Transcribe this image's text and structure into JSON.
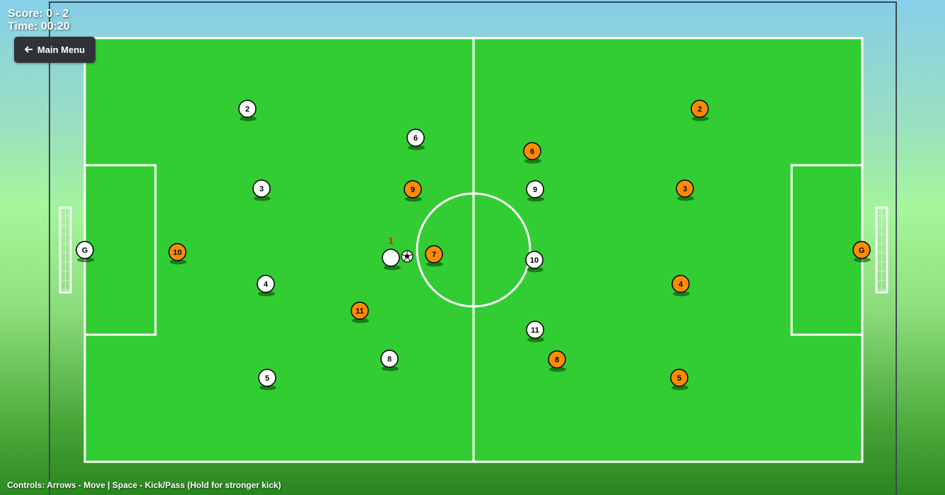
{
  "hud": {
    "score_label": "Score:",
    "score": "0 - 2",
    "time_label": "Time:",
    "time": "00:20"
  },
  "menu": {
    "arrow_icon": "left-arrow-icon",
    "label": "Main Menu"
  },
  "controls_hint": "Controls: Arrows - Move | Space - Kick/Pass (Hold for stronger kick)",
  "colors": {
    "pitch": "#32cd32",
    "lines": "#ffffff",
    "home_team": "#ffffff",
    "away_team": "#ff8c00",
    "player_outline": "#000000",
    "active_indicator": "#ff0000"
  },
  "active_player": {
    "indicator": "1",
    "team": "home"
  },
  "teams": {
    "home": [
      "G",
      "2",
      "3",
      "4",
      "5",
      "6",
      "8",
      "9",
      "10",
      "11"
    ],
    "away": [
      "G",
      "2",
      "3",
      "4",
      "5",
      "6",
      "7",
      "8",
      "9",
      "10",
      "11"
    ]
  },
  "ball": {
    "icon": "soccer-ball-icon"
  }
}
